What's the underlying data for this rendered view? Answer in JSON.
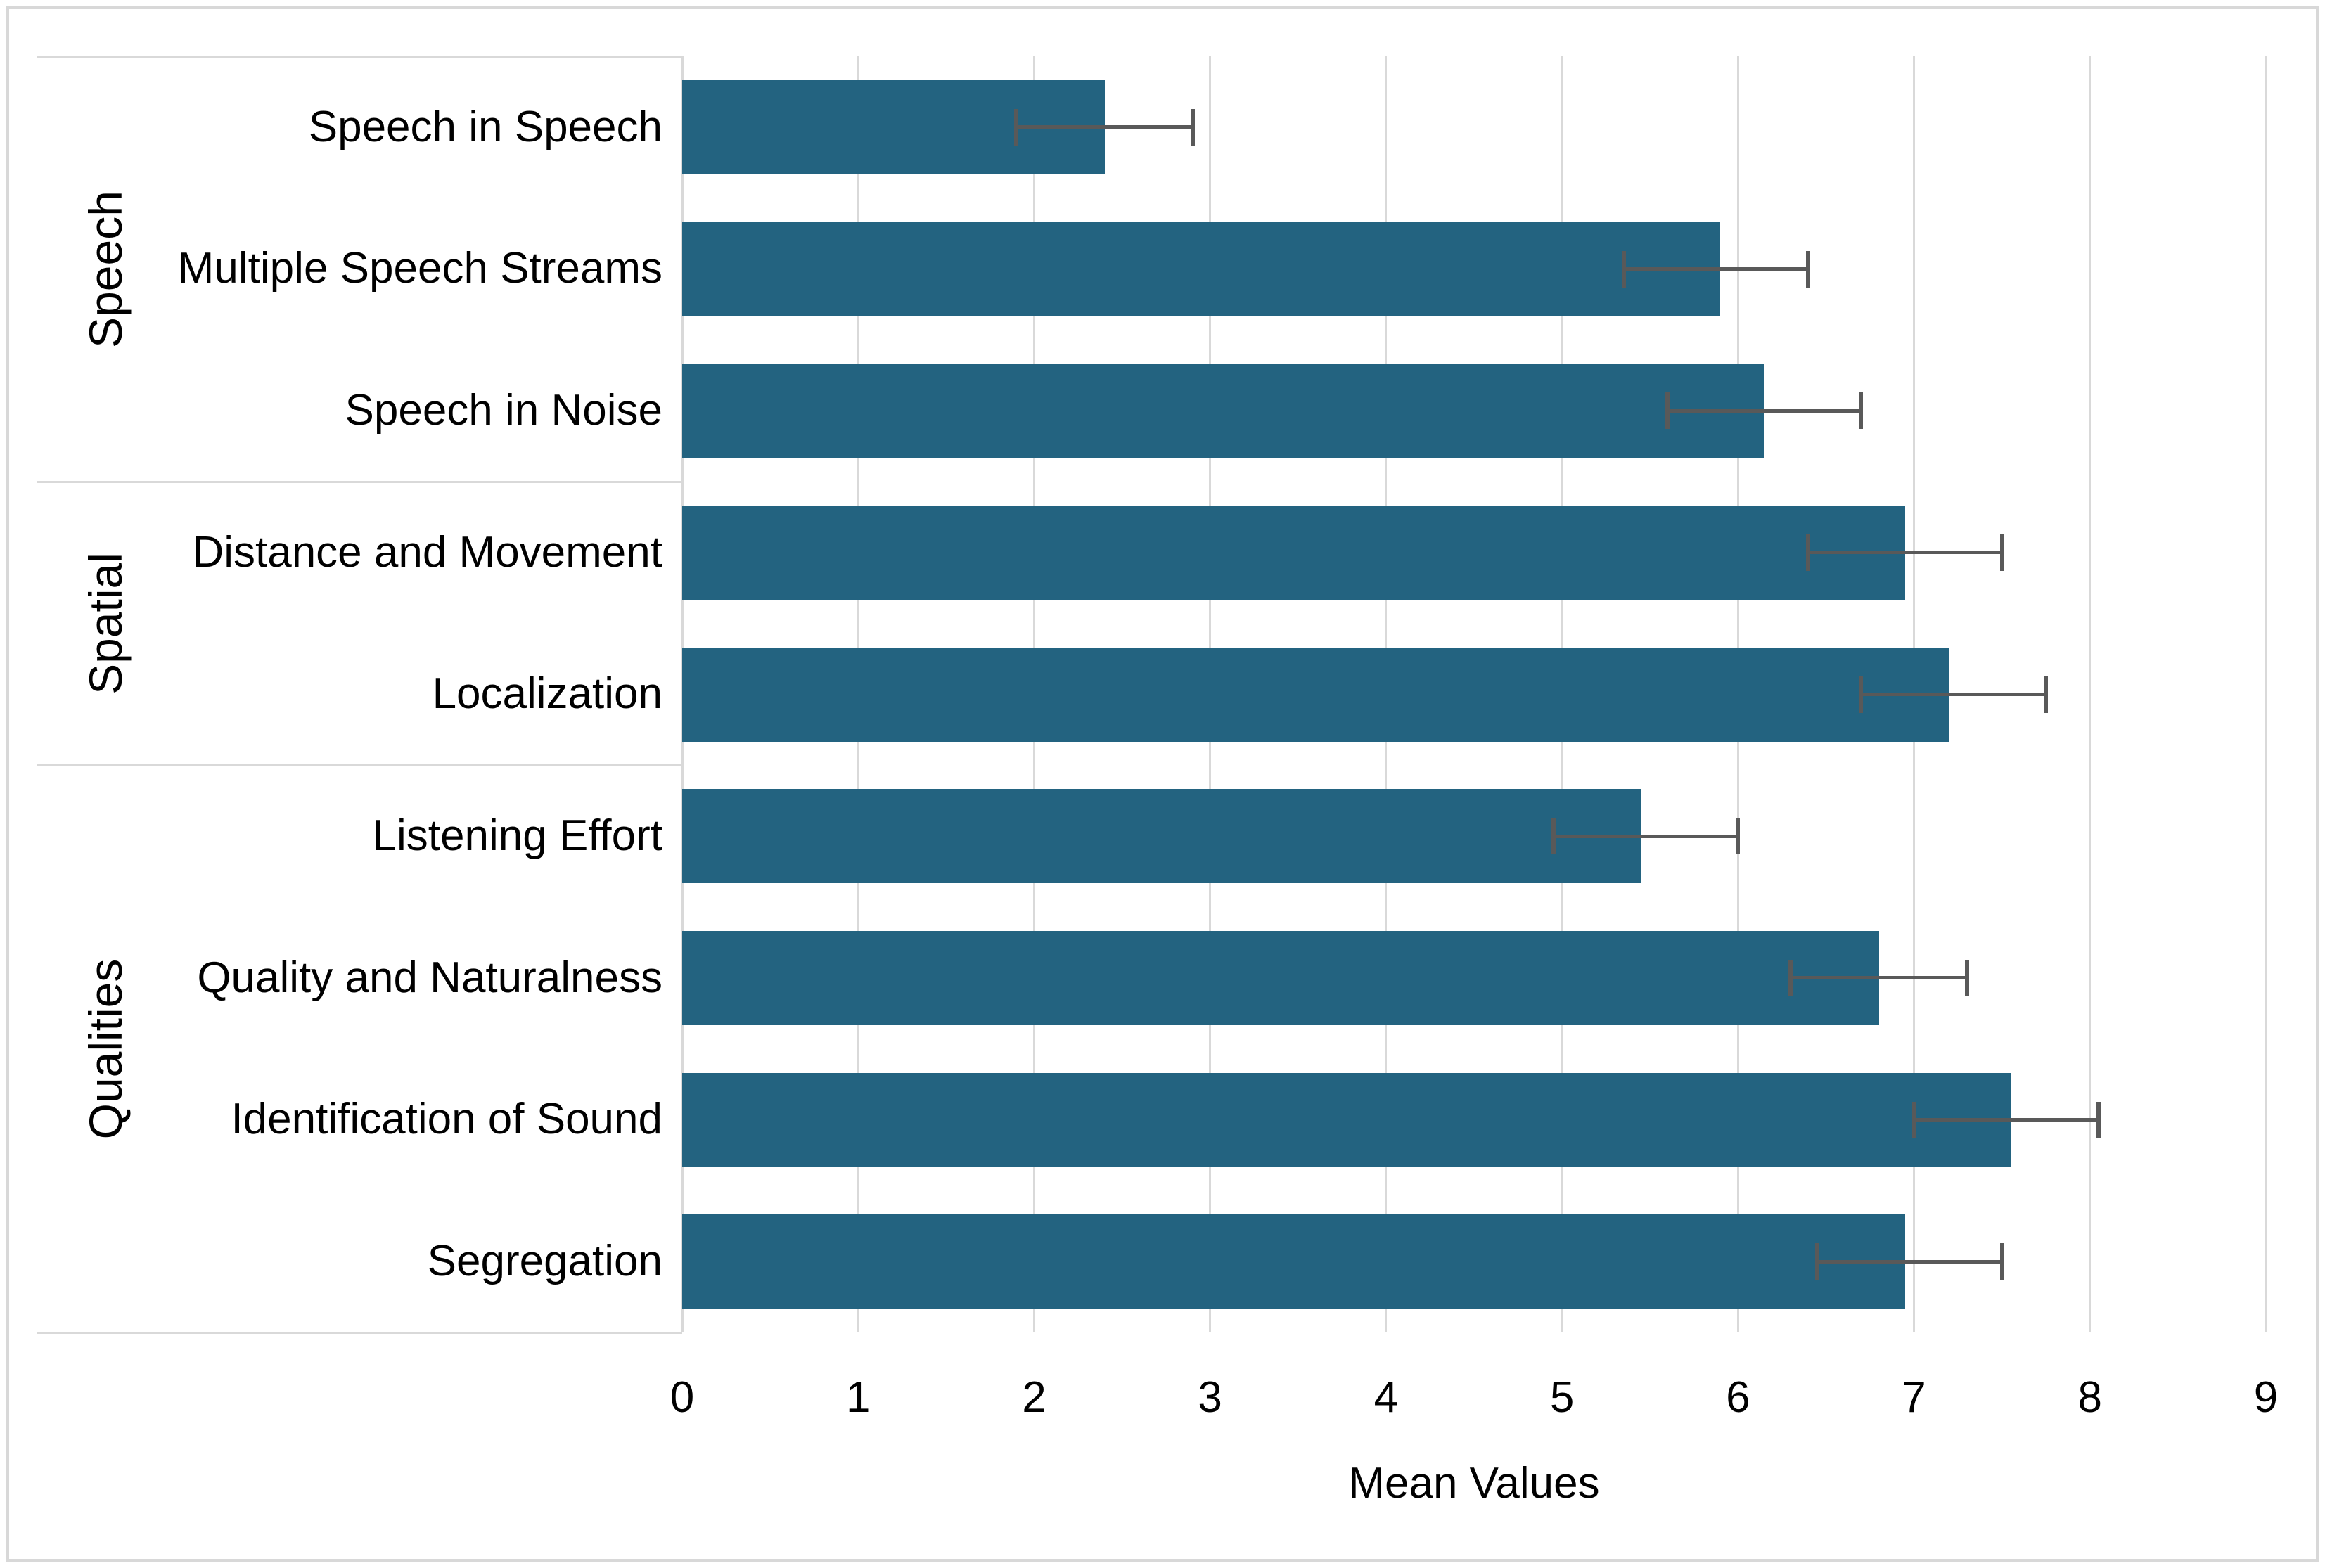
{
  "figure": {
    "background_color": "#ffffff",
    "frame_color": "#d8d8d8"
  },
  "chart_data": {
    "type": "bar",
    "orientation": "horizontal",
    "title": "",
    "xlabel": "Mean Values",
    "ylabel": "",
    "xlim": [
      0,
      9
    ],
    "xticks": [
      "0",
      "1",
      "2",
      "3",
      "4",
      "5",
      "6",
      "7",
      "8",
      "9"
    ],
    "grid": true,
    "legend": "none",
    "bar_color": "#236380",
    "error_bar_color": "#595959",
    "gridline_color": "#d9d9d9",
    "groups": [
      {
        "label": "Speech",
        "categories": [
          "Speech in Speech",
          "Multiple Speech Streams",
          "Speech in Noise"
        ]
      },
      {
        "label": "Spatial",
        "categories": [
          "Distance and Movement",
          "Localization"
        ]
      },
      {
        "label": "Qualities",
        "categories": [
          "Listening Effort",
          "Quality and Naturalness",
          "Identification of Sound",
          "Segregation"
        ]
      }
    ],
    "series": [
      {
        "name": "Mean Values",
        "points": [
          {
            "category": "Speech in Speech",
            "group": "Speech",
            "value": 2.4,
            "error_low": 1.9,
            "error_high": 2.9
          },
          {
            "category": "Multiple Speech Streams",
            "group": "Speech",
            "value": 5.9,
            "error_low": 5.35,
            "error_high": 6.4
          },
          {
            "category": "Speech in Noise",
            "group": "Speech",
            "value": 6.15,
            "error_low": 5.6,
            "error_high": 6.7
          },
          {
            "category": "Distance and Movement",
            "group": "Spatial",
            "value": 6.95,
            "error_low": 6.4,
            "error_high": 7.5
          },
          {
            "category": "Localization",
            "group": "Spatial",
            "value": 7.2,
            "error_low": 6.7,
            "error_high": 7.75
          },
          {
            "category": "Listening Effort",
            "group": "Qualities",
            "value": 5.45,
            "error_low": 4.95,
            "error_high": 6.0
          },
          {
            "category": "Quality and Naturalness",
            "group": "Qualities",
            "value": 6.8,
            "error_low": 6.3,
            "error_high": 7.3
          },
          {
            "category": "Identification of Sound",
            "group": "Qualities",
            "value": 7.55,
            "error_low": 7.0,
            "error_high": 8.05
          },
          {
            "category": "Segregation",
            "group": "Qualities",
            "value": 6.95,
            "error_low": 6.45,
            "error_high": 7.5
          }
        ]
      }
    ]
  }
}
